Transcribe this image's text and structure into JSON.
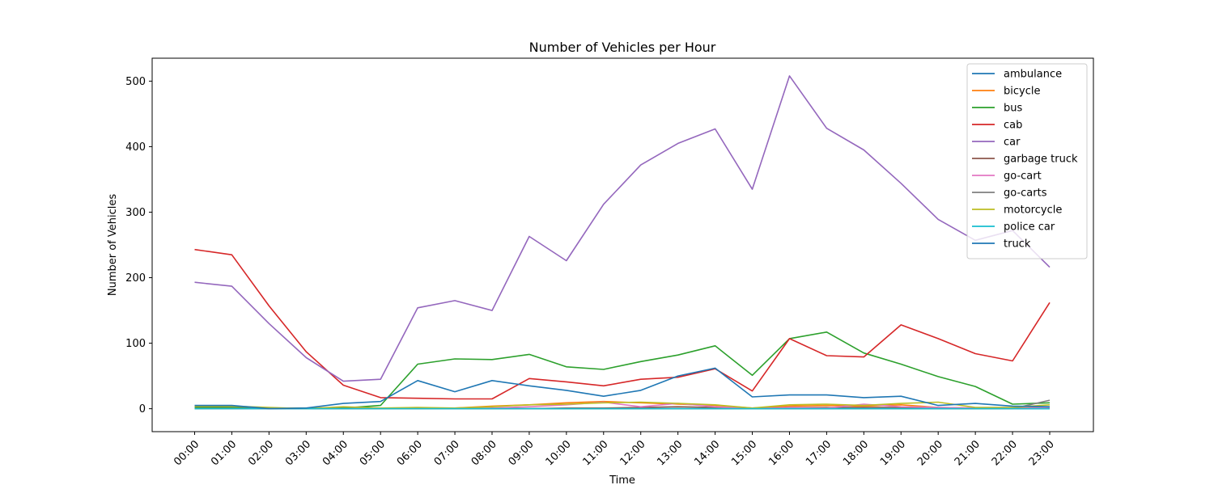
{
  "chart_data": {
    "type": "line",
    "title": "Number of Vehicles per Hour",
    "xlabel": "Time",
    "ylabel": "Number of Vehicles",
    "ylim": [
      -35,
      535
    ],
    "yticks": [
      0,
      100,
      200,
      300,
      400,
      500
    ],
    "legend_position": "top-right",
    "grid": false,
    "x": [
      "00:00",
      "01:00",
      "02:00",
      "03:00",
      "04:00",
      "05:00",
      "06:00",
      "07:00",
      "08:00",
      "09:00",
      "10:00",
      "11:00",
      "12:00",
      "13:00",
      "14:00",
      "15:00",
      "16:00",
      "17:00",
      "18:00",
      "19:00",
      "20:00",
      "21:00",
      "22:00",
      "23:00"
    ],
    "series": [
      {
        "name": "ambulance",
        "color": "#1f77b4",
        "values": [
          0,
          0,
          0,
          0,
          0,
          0,
          0,
          0,
          0,
          0,
          0,
          0,
          0,
          0,
          0,
          0,
          0,
          0,
          0,
          0,
          0,
          0,
          0,
          0
        ]
      },
      {
        "name": "bicycle",
        "color": "#ff7f0e",
        "values": [
          3,
          2,
          1,
          1,
          2,
          1,
          1,
          1,
          4,
          6,
          9,
          11,
          9,
          7,
          5,
          1,
          4,
          5,
          4,
          6,
          2,
          1,
          1,
          2
        ]
      },
      {
        "name": "bus",
        "color": "#2ca02c",
        "values": [
          2,
          2,
          0,
          1,
          1,
          5,
          68,
          76,
          75,
          83,
          64,
          60,
          72,
          82,
          96,
          51,
          107,
          117,
          85,
          68,
          49,
          34,
          7,
          9
        ]
      },
      {
        "name": "cab",
        "color": "#d62728",
        "values": [
          243,
          235,
          157,
          87,
          36,
          17,
          16,
          15,
          15,
          46,
          41,
          35,
          45,
          48,
          61,
          27,
          107,
          81,
          79,
          128,
          107,
          84,
          73,
          162
        ]
      },
      {
        "name": "car",
        "color": "#9467bd",
        "values": [
          193,
          187,
          130,
          78,
          42,
          45,
          154,
          165,
          150,
          263,
          226,
          312,
          372,
          405,
          427,
          335,
          508,
          428,
          395,
          344,
          289,
          257,
          272,
          216
        ]
      },
      {
        "name": "garbage truck",
        "color": "#8c564b",
        "values": [
          0,
          0,
          0,
          0,
          0,
          0,
          0,
          0,
          0,
          0,
          1,
          1,
          2,
          3,
          2,
          0,
          2,
          2,
          2,
          2,
          1,
          0,
          0,
          1
        ]
      },
      {
        "name": "go-cart",
        "color": "#e377c2",
        "values": [
          0,
          0,
          0,
          0,
          0,
          0,
          0,
          0,
          1,
          3,
          6,
          10,
          3,
          8,
          3,
          0,
          2,
          1,
          7,
          3,
          2,
          1,
          0,
          2
        ]
      },
      {
        "name": "go-carts",
        "color": "#7f7f7f",
        "values": [
          0,
          0,
          0,
          0,
          0,
          0,
          0,
          0,
          0,
          0,
          0,
          0,
          0,
          0,
          0,
          0,
          0,
          0,
          0,
          0,
          0,
          0,
          0,
          13
        ]
      },
      {
        "name": "motorcycle",
        "color": "#bcbd22",
        "values": [
          4,
          4,
          2,
          0,
          3,
          1,
          2,
          1,
          3,
          6,
          7,
          9,
          10,
          8,
          6,
          1,
          6,
          7,
          5,
          8,
          10,
          2,
          2,
          6
        ]
      },
      {
        "name": "police car",
        "color": "#17becf",
        "values": [
          0,
          0,
          0,
          0,
          0,
          0,
          0,
          0,
          0,
          0,
          0,
          0,
          0,
          0,
          0,
          0,
          0,
          0,
          0,
          0,
          0,
          0,
          0,
          0
        ]
      },
      {
        "name": "truck",
        "color": "#1f77b4",
        "values": [
          5,
          5,
          0,
          1,
          8,
          11,
          43,
          26,
          43,
          35,
          28,
          19,
          28,
          50,
          62,
          18,
          21,
          21,
          17,
          19,
          5,
          8,
          4,
          3
        ]
      }
    ]
  }
}
